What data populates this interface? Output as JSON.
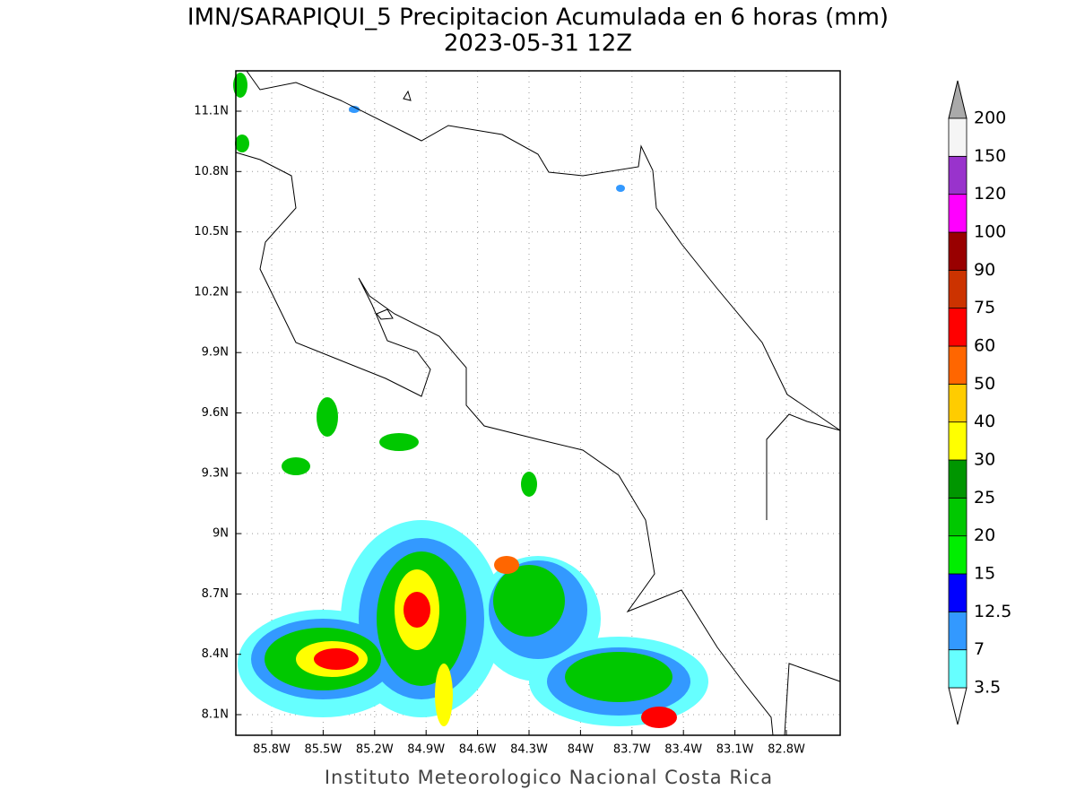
{
  "title": "IMN/SARAPIQUI_5 Precipitacion Acumulada en 6 horas (mm)",
  "subtitle": "2023-05-31 12Z",
  "lat_labels": [
    "11.1N",
    "10.8N",
    "10.5N",
    "10.2N",
    "9.9N",
    "9.6N",
    "9.3N",
    "9N",
    "8.7N",
    "8.4N",
    "8.1N"
  ],
  "lon_labels": [
    "85.8W",
    "85.5W",
    "85.2W",
    "84.9W",
    "84.6W",
    "84.3W",
    "84W",
    "83.7W",
    "83.4W",
    "83.1W",
    "82.8W"
  ],
  "colorbar": {
    "levels": [
      "3.5",
      "7",
      "12.5",
      "15",
      "20",
      "25",
      "30",
      "40",
      "50",
      "60",
      "75",
      "90",
      "100",
      "120",
      "150",
      "200"
    ],
    "colors": [
      "#66ffff",
      "#3399ff",
      "#0000ff",
      "#00ee00",
      "#00c800",
      "#009600",
      "#ffff00",
      "#ffcc00",
      "#ff6600",
      "#ff0000",
      "#cc3300",
      "#990000",
      "#ff00ff",
      "#9933cc",
      "#f5f5f5"
    ]
  },
  "footer": "Instituto Meteorologico Nacional Costa Rica"
}
